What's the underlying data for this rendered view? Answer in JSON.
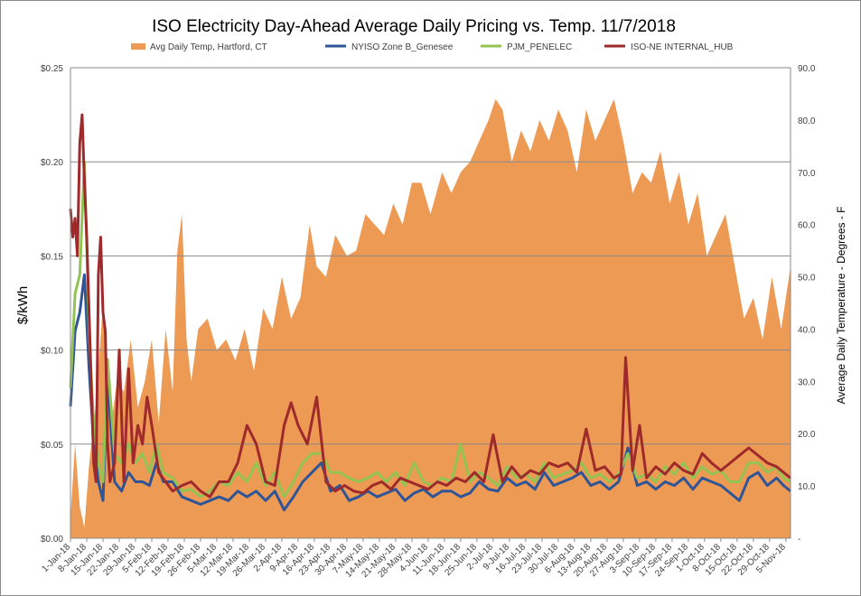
{
  "chart_data": {
    "type": "line",
    "title": "ISO Electricity Day-Ahead Average Daily Pricing vs. Temp. 11/7/2018",
    "ylabel": "$/kWh",
    "y2label": "Average Daily Temperature - Degrees - F",
    "ylim": [
      0,
      0.25
    ],
    "y2lim": [
      0,
      90
    ],
    "y_ticks": [
      "$0.00",
      "$0.05",
      "$0.10",
      "$0.15",
      "$0.20",
      "$0.25"
    ],
    "y2_ticks": [
      "-",
      "10.0",
      "20.0",
      "30.0",
      "40.0",
      "50.0",
      "60.0",
      "70.0",
      "80.0",
      "90.0"
    ],
    "x_tick_labels": [
      "1-Jan-18",
      "8-Jan-18",
      "15-Jan-18",
      "22-Jan-18",
      "29-Jan-18",
      "5-Feb-18",
      "12-Feb-18",
      "19-Feb-18",
      "26-Feb-18",
      "5-Mar-18",
      "12-Mar-18",
      "19-Mar-18",
      "26-Mar-18",
      "2-Apr-18",
      "9-Apr-18",
      "16-Apr-18",
      "23-Apr-18",
      "30-Apr-18",
      "7-May-18",
      "14-May-18",
      "21-May-18",
      "28-May-18",
      "4-Jun-18",
      "11-Jun-18",
      "18-Jun-18",
      "25-Jun-18",
      "2-Jul-18",
      "9-Jul-18",
      "16-Jul-18",
      "23-Jul-18",
      "30-Jul-18",
      "6-Aug-18",
      "13-Aug-18",
      "20-Aug-18",
      "27-Aug-18",
      "3-Sep-18",
      "10-Sep-18",
      "17-Sep-18",
      "24-Sep-18",
      "1-Oct-18",
      "8-Oct-18",
      "15-Oct-18",
      "22-Oct-18",
      "29-Oct-18",
      "5-Nov-18"
    ],
    "grid": true,
    "legend_position": "top",
    "x_start": "2018-01-01",
    "x_end": "2018-11-07",
    "series": [
      {
        "name": "Avg Daily Temp, Hartford, CT",
        "kind": "area",
        "axis": "right",
        "color": "#ED9A55",
        "x": [
          "2018-01-01",
          "2018-01-03",
          "2018-01-05",
          "2018-01-07",
          "2018-01-09",
          "2018-01-12",
          "2018-01-15",
          "2018-01-18",
          "2018-01-21",
          "2018-01-24",
          "2018-01-27",
          "2018-01-30",
          "2018-02-02",
          "2018-02-05",
          "2018-02-08",
          "2018-02-11",
          "2018-02-14",
          "2018-02-16",
          "2018-02-18",
          "2018-02-20",
          "2018-02-22",
          "2018-02-25",
          "2018-03-01",
          "2018-03-05",
          "2018-03-09",
          "2018-03-13",
          "2018-03-17",
          "2018-03-21",
          "2018-03-25",
          "2018-03-29",
          "2018-04-02",
          "2018-04-06",
          "2018-04-10",
          "2018-04-14",
          "2018-04-17",
          "2018-04-21",
          "2018-04-25",
          "2018-04-30",
          "2018-05-04",
          "2018-05-08",
          "2018-05-12",
          "2018-05-16",
          "2018-05-20",
          "2018-05-24",
          "2018-05-28",
          "2018-06-01",
          "2018-06-05",
          "2018-06-10",
          "2018-06-14",
          "2018-06-18",
          "2018-06-22",
          "2018-06-26",
          "2018-06-30",
          "2018-07-03",
          "2018-07-06",
          "2018-07-10",
          "2018-07-14",
          "2018-07-18",
          "2018-07-22",
          "2018-07-26",
          "2018-07-30",
          "2018-08-03",
          "2018-08-07",
          "2018-08-11",
          "2018-08-15",
          "2018-08-19",
          "2018-08-23",
          "2018-08-27",
          "2018-08-31",
          "2018-09-04",
          "2018-09-08",
          "2018-09-12",
          "2018-09-16",
          "2018-09-20",
          "2018-09-24",
          "2018-09-28",
          "2018-10-02",
          "2018-10-06",
          "2018-10-10",
          "2018-10-14",
          "2018-10-18",
          "2018-10-22",
          "2018-10-26",
          "2018-10-30",
          "2018-11-03",
          "2018-11-07"
        ],
        "values": [
          4,
          18,
          6,
          2,
          14,
          26,
          45,
          20,
          30,
          28,
          38,
          25,
          30,
          38,
          22,
          40,
          28,
          55,
          62,
          38,
          30,
          40,
          42,
          36,
          38,
          34,
          40,
          32,
          44,
          40,
          50,
          42,
          46,
          60,
          52,
          50,
          58,
          54,
          55,
          62,
          60,
          58,
          64,
          60,
          68,
          68,
          62,
          70,
          66,
          70,
          72,
          76,
          80,
          84,
          82,
          72,
          78,
          74,
          80,
          76,
          82,
          78,
          70,
          82,
          76,
          80,
          84,
          76,
          66,
          70,
          68,
          74,
          64,
          70,
          60,
          66,
          54,
          58,
          62,
          52,
          42,
          46,
          38,
          50,
          40,
          52
        ]
      },
      {
        "name": "NYISO Zone B_Genesee",
        "kind": "line",
        "axis": "left",
        "color": "#2F5597",
        "x": [
          "2018-01-01",
          "2018-01-03",
          "2018-01-05",
          "2018-01-07",
          "2018-01-09",
          "2018-01-11",
          "2018-01-13",
          "2018-01-15",
          "2018-01-17",
          "2018-01-20",
          "2018-01-23",
          "2018-01-26",
          "2018-01-29",
          "2018-02-01",
          "2018-02-04",
          "2018-02-07",
          "2018-02-10",
          "2018-02-14",
          "2018-02-18",
          "2018-02-22",
          "2018-02-26",
          "2018-03-02",
          "2018-03-06",
          "2018-03-10",
          "2018-03-14",
          "2018-03-18",
          "2018-03-22",
          "2018-03-26",
          "2018-03-30",
          "2018-04-03",
          "2018-04-07",
          "2018-04-11",
          "2018-04-15",
          "2018-04-19",
          "2018-04-23",
          "2018-04-27",
          "2018-05-01",
          "2018-05-05",
          "2018-05-09",
          "2018-05-13",
          "2018-05-17",
          "2018-05-21",
          "2018-05-25",
          "2018-05-29",
          "2018-06-02",
          "2018-06-06",
          "2018-06-10",
          "2018-06-14",
          "2018-06-18",
          "2018-06-22",
          "2018-06-26",
          "2018-06-30",
          "2018-07-04",
          "2018-07-08",
          "2018-07-12",
          "2018-07-16",
          "2018-07-20",
          "2018-07-24",
          "2018-07-28",
          "2018-08-01",
          "2018-08-05",
          "2018-08-09",
          "2018-08-13",
          "2018-08-17",
          "2018-08-21",
          "2018-08-25",
          "2018-08-29",
          "2018-09-02",
          "2018-09-06",
          "2018-09-10",
          "2018-09-14",
          "2018-09-18",
          "2018-09-22",
          "2018-09-26",
          "2018-09-30",
          "2018-10-04",
          "2018-10-08",
          "2018-10-12",
          "2018-10-16",
          "2018-10-20",
          "2018-10-24",
          "2018-10-28",
          "2018-11-01",
          "2018-11-04",
          "2018-11-07"
        ],
        "values": [
          0.07,
          0.11,
          0.12,
          0.14,
          0.09,
          0.05,
          0.03,
          0.02,
          0.085,
          0.03,
          0.025,
          0.035,
          0.03,
          0.03,
          0.028,
          0.04,
          0.03,
          0.03,
          0.022,
          0.02,
          0.018,
          0.02,
          0.022,
          0.02,
          0.025,
          0.022,
          0.025,
          0.02,
          0.025,
          0.015,
          0.022,
          0.03,
          0.035,
          0.04,
          0.025,
          0.028,
          0.02,
          0.022,
          0.025,
          0.022,
          0.024,
          0.026,
          0.02,
          0.024,
          0.026,
          0.022,
          0.025,
          0.025,
          0.022,
          0.024,
          0.03,
          0.026,
          0.025,
          0.032,
          0.028,
          0.03,
          0.026,
          0.035,
          0.028,
          0.03,
          0.032,
          0.035,
          0.028,
          0.03,
          0.026,
          0.03,
          0.048,
          0.028,
          0.03,
          0.026,
          0.03,
          0.028,
          0.032,
          0.026,
          0.032,
          0.03,
          0.028,
          0.024,
          0.02,
          0.032,
          0.035,
          0.028,
          0.032,
          0.028,
          0.025
        ]
      },
      {
        "name": "PJM_PENELEC",
        "kind": "line",
        "axis": "left",
        "color": "#92C353",
        "x": [
          "2018-01-01",
          "2018-01-03",
          "2018-01-05",
          "2018-01-07",
          "2018-01-09",
          "2018-01-11",
          "2018-01-13",
          "2018-01-15",
          "2018-01-17",
          "2018-01-20",
          "2018-01-23",
          "2018-01-26",
          "2018-01-29",
          "2018-02-01",
          "2018-02-04",
          "2018-02-07",
          "2018-02-10",
          "2018-02-14",
          "2018-02-18",
          "2018-02-22",
          "2018-02-26",
          "2018-03-02",
          "2018-03-06",
          "2018-03-10",
          "2018-03-14",
          "2018-03-18",
          "2018-03-22",
          "2018-03-26",
          "2018-03-30",
          "2018-04-03",
          "2018-04-07",
          "2018-04-11",
          "2018-04-15",
          "2018-04-19",
          "2018-04-23",
          "2018-04-27",
          "2018-05-01",
          "2018-05-05",
          "2018-05-09",
          "2018-05-13",
          "2018-05-17",
          "2018-05-21",
          "2018-05-25",
          "2018-05-29",
          "2018-06-02",
          "2018-06-06",
          "2018-06-10",
          "2018-06-14",
          "2018-06-18",
          "2018-06-22",
          "2018-06-26",
          "2018-06-30",
          "2018-07-04",
          "2018-07-08",
          "2018-07-12",
          "2018-07-16",
          "2018-07-20",
          "2018-07-24",
          "2018-07-28",
          "2018-08-01",
          "2018-08-05",
          "2018-08-09",
          "2018-08-13",
          "2018-08-17",
          "2018-08-21",
          "2018-08-25",
          "2018-08-29",
          "2018-09-02",
          "2018-09-06",
          "2018-09-10",
          "2018-09-14",
          "2018-09-18",
          "2018-09-22",
          "2018-09-26",
          "2018-09-30",
          "2018-10-04",
          "2018-10-08",
          "2018-10-12",
          "2018-10-16",
          "2018-10-20",
          "2018-10-24",
          "2018-10-28",
          "2018-11-01",
          "2018-11-04",
          "2018-11-07"
        ],
        "values": [
          0.08,
          0.13,
          0.14,
          0.2,
          0.11,
          0.06,
          0.04,
          0.03,
          0.095,
          0.045,
          0.04,
          0.05,
          0.04,
          0.045,
          0.035,
          0.05,
          0.035,
          0.032,
          0.025,
          0.026,
          0.022,
          0.025,
          0.03,
          0.028,
          0.035,
          0.03,
          0.04,
          0.028,
          0.035,
          0.022,
          0.03,
          0.04,
          0.045,
          0.045,
          0.035,
          0.035,
          0.032,
          0.03,
          0.032,
          0.035,
          0.03,
          0.035,
          0.028,
          0.04,
          0.03,
          0.028,
          0.032,
          0.03,
          0.05,
          0.03,
          0.035,
          0.032,
          0.028,
          0.038,
          0.032,
          0.034,
          0.03,
          0.04,
          0.032,
          0.034,
          0.036,
          0.04,
          0.032,
          0.034,
          0.03,
          0.034,
          0.045,
          0.032,
          0.034,
          0.03,
          0.038,
          0.034,
          0.04,
          0.032,
          0.038,
          0.034,
          0.036,
          0.03,
          0.03,
          0.04,
          0.04,
          0.035,
          0.038,
          0.032,
          0.03
        ]
      },
      {
        "name": "ISO-NE INTERNAL_HUB",
        "kind": "line",
        "axis": "left",
        "color": "#9E2A2B",
        "x": [
          "2018-01-01",
          "2018-01-02",
          "2018-01-03",
          "2018-01-04",
          "2018-01-05",
          "2018-01-06",
          "2018-01-07",
          "2018-01-08",
          "2018-01-09",
          "2018-01-10",
          "2018-01-11",
          "2018-01-12",
          "2018-01-13",
          "2018-01-14",
          "2018-01-15",
          "2018-01-16",
          "2018-01-17",
          "2018-01-18",
          "2018-01-20",
          "2018-01-22",
          "2018-01-24",
          "2018-01-26",
          "2018-01-28",
          "2018-01-30",
          "2018-02-01",
          "2018-02-03",
          "2018-02-05",
          "2018-02-08",
          "2018-02-11",
          "2018-02-14",
          "2018-02-18",
          "2018-02-22",
          "2018-02-26",
          "2018-03-02",
          "2018-03-06",
          "2018-03-10",
          "2018-03-14",
          "2018-03-18",
          "2018-03-22",
          "2018-03-26",
          "2018-03-30",
          "2018-04-03",
          "2018-04-06",
          "2018-04-09",
          "2018-04-13",
          "2018-04-17",
          "2018-04-21",
          "2018-04-25",
          "2018-04-29",
          "2018-05-03",
          "2018-05-07",
          "2018-05-11",
          "2018-05-15",
          "2018-05-19",
          "2018-05-23",
          "2018-05-27",
          "2018-05-31",
          "2018-06-04",
          "2018-06-08",
          "2018-06-12",
          "2018-06-16",
          "2018-06-20",
          "2018-06-24",
          "2018-06-28",
          "2018-07-02",
          "2018-07-06",
          "2018-07-10",
          "2018-07-14",
          "2018-07-18",
          "2018-07-22",
          "2018-07-26",
          "2018-07-30",
          "2018-08-03",
          "2018-08-07",
          "2018-08-11",
          "2018-08-15",
          "2018-08-19",
          "2018-08-23",
          "2018-08-26",
          "2018-08-28",
          "2018-08-31",
          "2018-09-03",
          "2018-09-06",
          "2018-09-10",
          "2018-09-14",
          "2018-09-18",
          "2018-09-22",
          "2018-09-26",
          "2018-09-30",
          "2018-10-04",
          "2018-10-08",
          "2018-10-12",
          "2018-10-16",
          "2018-10-20",
          "2018-10-24",
          "2018-10-28",
          "2018-11-01",
          "2018-11-04",
          "2018-11-07"
        ],
        "values": [
          0.175,
          0.16,
          0.17,
          0.15,
          0.21,
          0.225,
          0.19,
          0.16,
          0.12,
          0.08,
          0.04,
          0.03,
          0.14,
          0.16,
          0.12,
          0.11,
          0.05,
          0.03,
          0.04,
          0.1,
          0.03,
          0.09,
          0.04,
          0.06,
          0.05,
          0.075,
          0.06,
          0.035,
          0.03,
          0.025,
          0.028,
          0.03,
          0.025,
          0.022,
          0.03,
          0.03,
          0.04,
          0.06,
          0.05,
          0.03,
          0.028,
          0.06,
          0.072,
          0.06,
          0.05,
          0.075,
          0.03,
          0.025,
          0.028,
          0.025,
          0.024,
          0.028,
          0.03,
          0.026,
          0.032,
          0.03,
          0.028,
          0.026,
          0.03,
          0.028,
          0.032,
          0.03,
          0.035,
          0.03,
          0.055,
          0.03,
          0.038,
          0.032,
          0.036,
          0.034,
          0.04,
          0.038,
          0.04,
          0.035,
          0.058,
          0.036,
          0.038,
          0.032,
          0.034,
          0.096,
          0.036,
          0.06,
          0.032,
          0.038,
          0.034,
          0.04,
          0.036,
          0.034,
          0.045,
          0.04,
          0.036,
          0.04,
          0.044,
          0.048,
          0.044,
          0.04,
          0.038,
          0.035,
          0.032
        ]
      }
    ]
  }
}
